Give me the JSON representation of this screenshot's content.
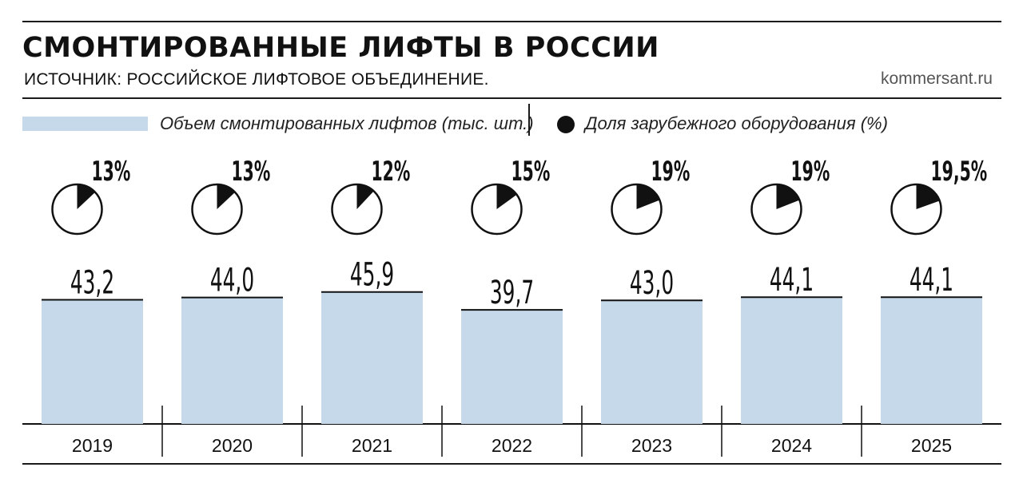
{
  "header": {
    "title": "СМОНТИРОВАННЫЕ ЛИФТЫ В РОССИИ",
    "source": "ИСТОЧНИК: РОССИЙСКОЕ ЛИФТОВОЕ ОБЪЕДИНЕНИЕ.",
    "brand": "kommersant.ru"
  },
  "legend": {
    "bar_label": "Объем смонтированных лифтов (тыс. шт.)",
    "pie_label": "Доля зарубежного оборудования (%)"
  },
  "colors": {
    "bar": "#c5d9ea",
    "ink": "#111111"
  },
  "chart_data": {
    "type": "bar",
    "categories": [
      "2019",
      "2020",
      "2021",
      "2022",
      "2023",
      "2024",
      "2025"
    ],
    "series": [
      {
        "name": "Объем смонтированных лифтов (тыс. шт.)",
        "values": [
          43.2,
          44.0,
          45.9,
          39.7,
          43.0,
          44.1,
          44.1
        ],
        "labels": [
          "43,2",
          "44,0",
          "45,9",
          "39,7",
          "43,0",
          "44,1",
          "44,1"
        ]
      },
      {
        "name": "Доля зарубежного оборудования (%)",
        "type": "pie",
        "values": [
          13,
          13,
          12,
          15,
          19,
          19,
          19.5
        ],
        "labels": [
          "13%",
          "13%",
          "12%",
          "15%",
          "19%",
          "19%",
          "19,5%"
        ]
      }
    ],
    "ylim": [
      0,
      46
    ],
    "legend": "top"
  }
}
